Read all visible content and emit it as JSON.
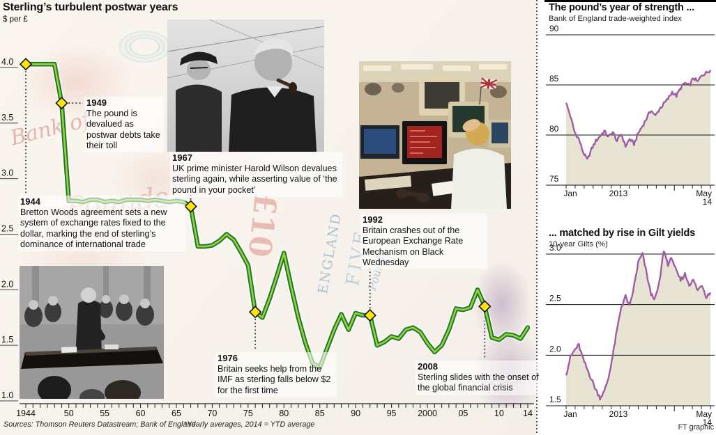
{
  "header": {
    "title": "Sterling’s turbulent postwar years",
    "subtitle": "$ per £"
  },
  "footer": {
    "sources": "Sources: Thomson Reuters Datastream; Bank of England",
    "footnote": "*Yearly averages, 2014 = YTD average",
    "credit": "FT graphic"
  },
  "colors": {
    "line_green_dark": "#1a7a2e",
    "line_green_light": "#9fce3a",
    "marker_yellow": "#ffe60a",
    "purple_line": "#9d5ca3",
    "area_beige": "#e8e4d3",
    "axis": "#222222"
  },
  "chart_data": [
    {
      "type": "line",
      "title": "Sterling’s turbulent postwar years",
      "ylabel": "$ per £",
      "x_start": 1944,
      "x_end": 2014,
      "values": [
        4.03,
        4.03,
        4.03,
        4.03,
        4.03,
        3.68,
        2.8,
        2.8,
        2.79,
        2.81,
        2.81,
        2.79,
        2.8,
        2.79,
        2.81,
        2.81,
        2.81,
        2.8,
        2.81,
        2.8,
        2.79,
        2.8,
        2.79,
        2.75,
        2.39,
        2.39,
        2.4,
        2.44,
        2.5,
        2.45,
        2.34,
        2.22,
        1.8,
        1.75,
        1.92,
        2.12,
        2.33,
        2.03,
        1.75,
        1.52,
        1.34,
        1.3,
        1.47,
        1.64,
        1.78,
        1.64,
        1.79,
        1.77,
        1.77,
        1.5,
        1.53,
        1.58,
        1.56,
        1.64,
        1.66,
        1.62,
        1.52,
        1.44,
        1.5,
        1.64,
        1.83,
        1.82,
        1.84,
        2.0,
        1.85,
        1.57,
        1.55,
        1.6,
        1.59,
        1.56,
        1.66
      ],
      "ylim": [
        1.0,
        4.0
      ],
      "y_ticks": [
        {
          "label": "4.0",
          "value": 4.0
        },
        {
          "label": "3.5",
          "value": 3.5
        },
        {
          "label": "3.0",
          "value": 3.0
        },
        {
          "label": "2.5",
          "value": 2.5
        },
        {
          "label": "2.0",
          "value": 2.0
        },
        {
          "label": "1.5",
          "value": 1.5
        },
        {
          "label": "1.0",
          "value": 1.0
        }
      ],
      "x_ticks": [
        {
          "year": 1944,
          "label": "1944"
        },
        {
          "year": 1950,
          "label": "50"
        },
        {
          "year": 1955,
          "label": "55"
        },
        {
          "year": 1960,
          "label": "60"
        },
        {
          "year": 1965,
          "label": "65"
        },
        {
          "year": 1970,
          "label": "70"
        },
        {
          "year": 1975,
          "label": "75"
        },
        {
          "year": 1980,
          "label": "80"
        },
        {
          "year": 1985,
          "label": "85"
        },
        {
          "year": 1990,
          "label": "90"
        },
        {
          "year": 1995,
          "label": "95"
        },
        {
          "year": 2000,
          "label": "2000"
        },
        {
          "year": 2005,
          "label": "05"
        },
        {
          "year": 2010,
          "label": "10"
        },
        {
          "year": 2014,
          "label": "14"
        }
      ],
      "events": [
        {
          "year": 1944,
          "value": 4.03,
          "title": "1944",
          "text": "Bretton Woods agreement sets a new system of exchange rates fixed to the dollar, marking the end of sterling’s dominance of international trade"
        },
        {
          "year": 1949,
          "value": 3.68,
          "title": "1949",
          "text": "The pound is devalued as postwar debts take their toll"
        },
        {
          "year": 1967,
          "value": 2.75,
          "title": "1967",
          "text": "UK prime minister Harold Wilson devalues sterling again, while asserting value of ‘the pound in your pocket’"
        },
        {
          "year": 1976,
          "value": 1.8,
          "title": "1976",
          "text": "Britain seeks help from the IMF as sterling falls below $2 for the first time"
        },
        {
          "year": 1992,
          "value": 1.77,
          "title": "1992",
          "text": "Britain crashes out of the European Exchange Rate Mechanism on Black Wednesday"
        },
        {
          "year": 2008,
          "value": 1.85,
          "title": "2008",
          "text": "Sterling slides with the onset of the global financial crisis"
        }
      ]
    },
    {
      "type": "area",
      "title": "The pound’s year of strength ...",
      "subtitle": "Bank of England trade-weighted index",
      "x_range": "Jan 2013 - May 2014",
      "x_labels": [
        "Jan",
        "2013",
        "May",
        "14"
      ],
      "y_ticks": [
        {
          "label": "90",
          "value": 90
        },
        {
          "label": "85",
          "value": 85
        },
        {
          "label": "80",
          "value": 80
        },
        {
          "label": "75",
          "value": 75
        }
      ],
      "ylim": [
        75,
        90
      ],
      "jitter": 0.18,
      "line_color": "#9d5ca3",
      "fill_color": "#e8e4d3",
      "values": [
        83.2,
        81.9,
        80.3,
        79.6,
        78.3,
        77.5,
        78.6,
        79.4,
        79.9,
        80.4,
        79.8,
        80.3,
        79.4,
        80.1,
        78.9,
        79.6,
        79.1,
        80.2,
        80.9,
        81.7,
        82.5,
        81.9,
        82.6,
        83.1,
        83.6,
        84.3,
        83.9,
        84.7,
        85.2,
        84.9,
        85.7,
        85.3,
        86.0,
        86.2,
        86.5
      ]
    },
    {
      "type": "area",
      "title": "... matched by rise in Gilt yields",
      "subtitle": "10-year Gilts (%)",
      "x_range": "Jan 2013 - May 2014",
      "x_labels": [
        "Jan",
        "2013",
        "May",
        "14"
      ],
      "y_ticks": [
        {
          "label": "3.0",
          "value": 3.0
        },
        {
          "label": "2.5",
          "value": 2.5
        },
        {
          "label": "2.0",
          "value": 2.0
        },
        {
          "label": "1.5",
          "value": 1.5
        }
      ],
      "ylim": [
        1.5,
        3.0
      ],
      "jitter": 0.02,
      "line_color": "#9d5ca3",
      "fill_color": "#e8e4d3",
      "values": [
        1.8,
        1.98,
        2.05,
        2.1,
        1.96,
        1.86,
        1.76,
        1.66,
        1.58,
        1.64,
        1.78,
        2.0,
        2.25,
        2.48,
        2.58,
        2.48,
        2.68,
        2.92,
        3.0,
        2.8,
        2.6,
        2.56,
        2.72,
        3.04,
        2.9,
        2.96,
        2.82,
        2.74,
        2.8,
        2.7,
        2.74,
        2.64,
        2.7,
        2.58,
        2.62
      ]
    }
  ]
}
